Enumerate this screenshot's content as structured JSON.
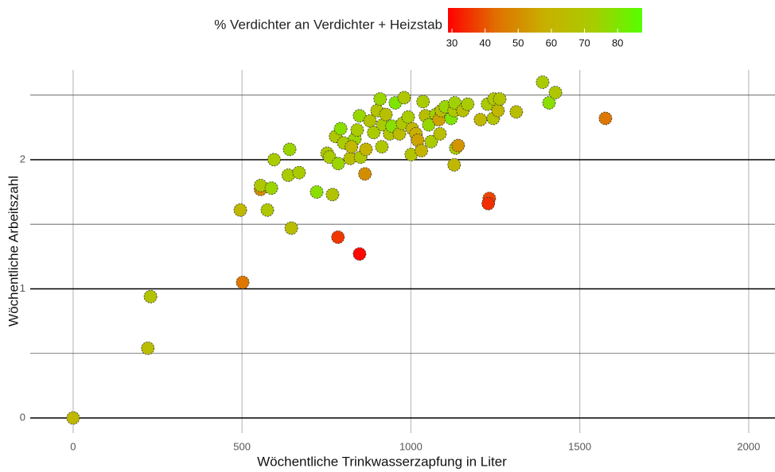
{
  "chart_data": {
    "type": "scatter",
    "x_label": "Wöchentliche Trinkwasserzapfung in Liter",
    "y_label": "Wöchentliche Arbeitszahl",
    "xlim": [
      -127,
      2078
    ],
    "ylim": [
      -0.117,
      2.695
    ],
    "xticks": [
      0,
      500,
      1000,
      1500,
      2000
    ],
    "yticks": [
      0,
      1,
      2
    ],
    "y_minor_grid": [
      0.5,
      1.5,
      2.5
    ],
    "x_grid_color": "#bdbdbd",
    "y_grid_color": "#000000",
    "y_minor_grid_color": "#555555",
    "colorbar": {
      "title": "% Verdichter an Verdichter + Heizstab",
      "lim": [
        28.8,
        87.4
      ],
      "ticks": [
        30,
        40,
        50,
        60,
        70,
        80
      ],
      "colors": [
        "#ff0000",
        "#e07000",
        "#c8b000",
        "#a8cc00",
        "#55ff00"
      ]
    },
    "x": [
      0,
      221,
      229,
      502,
      495,
      575,
      555,
      555,
      587,
      595,
      646,
      637,
      641,
      669,
      721,
      768,
      784,
      848,
      864,
      752,
      759,
      785,
      777,
      792,
      801,
      820,
      834,
      841,
      824,
      848,
      851,
      867,
      879,
      890,
      900,
      909,
      914,
      917,
      926,
      937,
      944,
      954,
      966,
      975,
      980,
      992,
      1001,
      1004,
      1015,
      1020,
      1031,
      1036,
      1043,
      1053,
      1060,
      1074,
      1083,
      1090,
      1086,
      1102,
      1119,
      1128,
      1130,
      1128,
      1133,
      1140,
      1154,
      1168,
      1206,
      1227,
      1232,
      1229,
      1244,
      1246,
      1258,
      1263,
      1312,
      1390,
      1409,
      1428,
      1576
    ],
    "y": [
      0,
      0.54,
      0.94,
      1.05,
      1.61,
      1.61,
      1.77,
      1.8,
      1.78,
      2.0,
      1.47,
      1.88,
      2.08,
      1.9,
      1.75,
      1.73,
      1.4,
      1.27,
      1.89,
      2.05,
      2.02,
      1.97,
      2.18,
      2.24,
      2.13,
      2.01,
      2.16,
      2.23,
      2.1,
      2.34,
      2.02,
      2.08,
      2.3,
      2.21,
      2.38,
      2.47,
      2.1,
      2.27,
      2.35,
      2.2,
      2.26,
      2.44,
      2.2,
      2.28,
      2.48,
      2.33,
      2.04,
      2.24,
      2.2,
      2.15,
      2.07,
      2.45,
      2.34,
      2.27,
      2.14,
      2.35,
      2.31,
      2.38,
      2.2,
      2.41,
      2.32,
      2.38,
      2.44,
      1.96,
      2.09,
      2.11,
      2.38,
      2.43,
      2.31,
      2.43,
      1.7,
      1.66,
      2.32,
      2.47,
      2.38,
      2.47,
      2.37,
      2.6,
      2.44,
      2.52,
      2.32
    ],
    "color_values": [
      62,
      65,
      68,
      45,
      62,
      70,
      50,
      70,
      75,
      72,
      65,
      72,
      75,
      72,
      78,
      68,
      36,
      30,
      50,
      70,
      72,
      75,
      70,
      78,
      72,
      65,
      75,
      72,
      62,
      76,
      70,
      60,
      68,
      72,
      68,
      75,
      70,
      72,
      66,
      68,
      78,
      80,
      64,
      70,
      70,
      72,
      68,
      62,
      58,
      55,
      60,
      72,
      65,
      76,
      72,
      74,
      55,
      65,
      66,
      75,
      80,
      70,
      74,
      62,
      72,
      52,
      66,
      72,
      62,
      72,
      38,
      35,
      68,
      70,
      62,
      68,
      65,
      72,
      78,
      70,
      45
    ]
  }
}
